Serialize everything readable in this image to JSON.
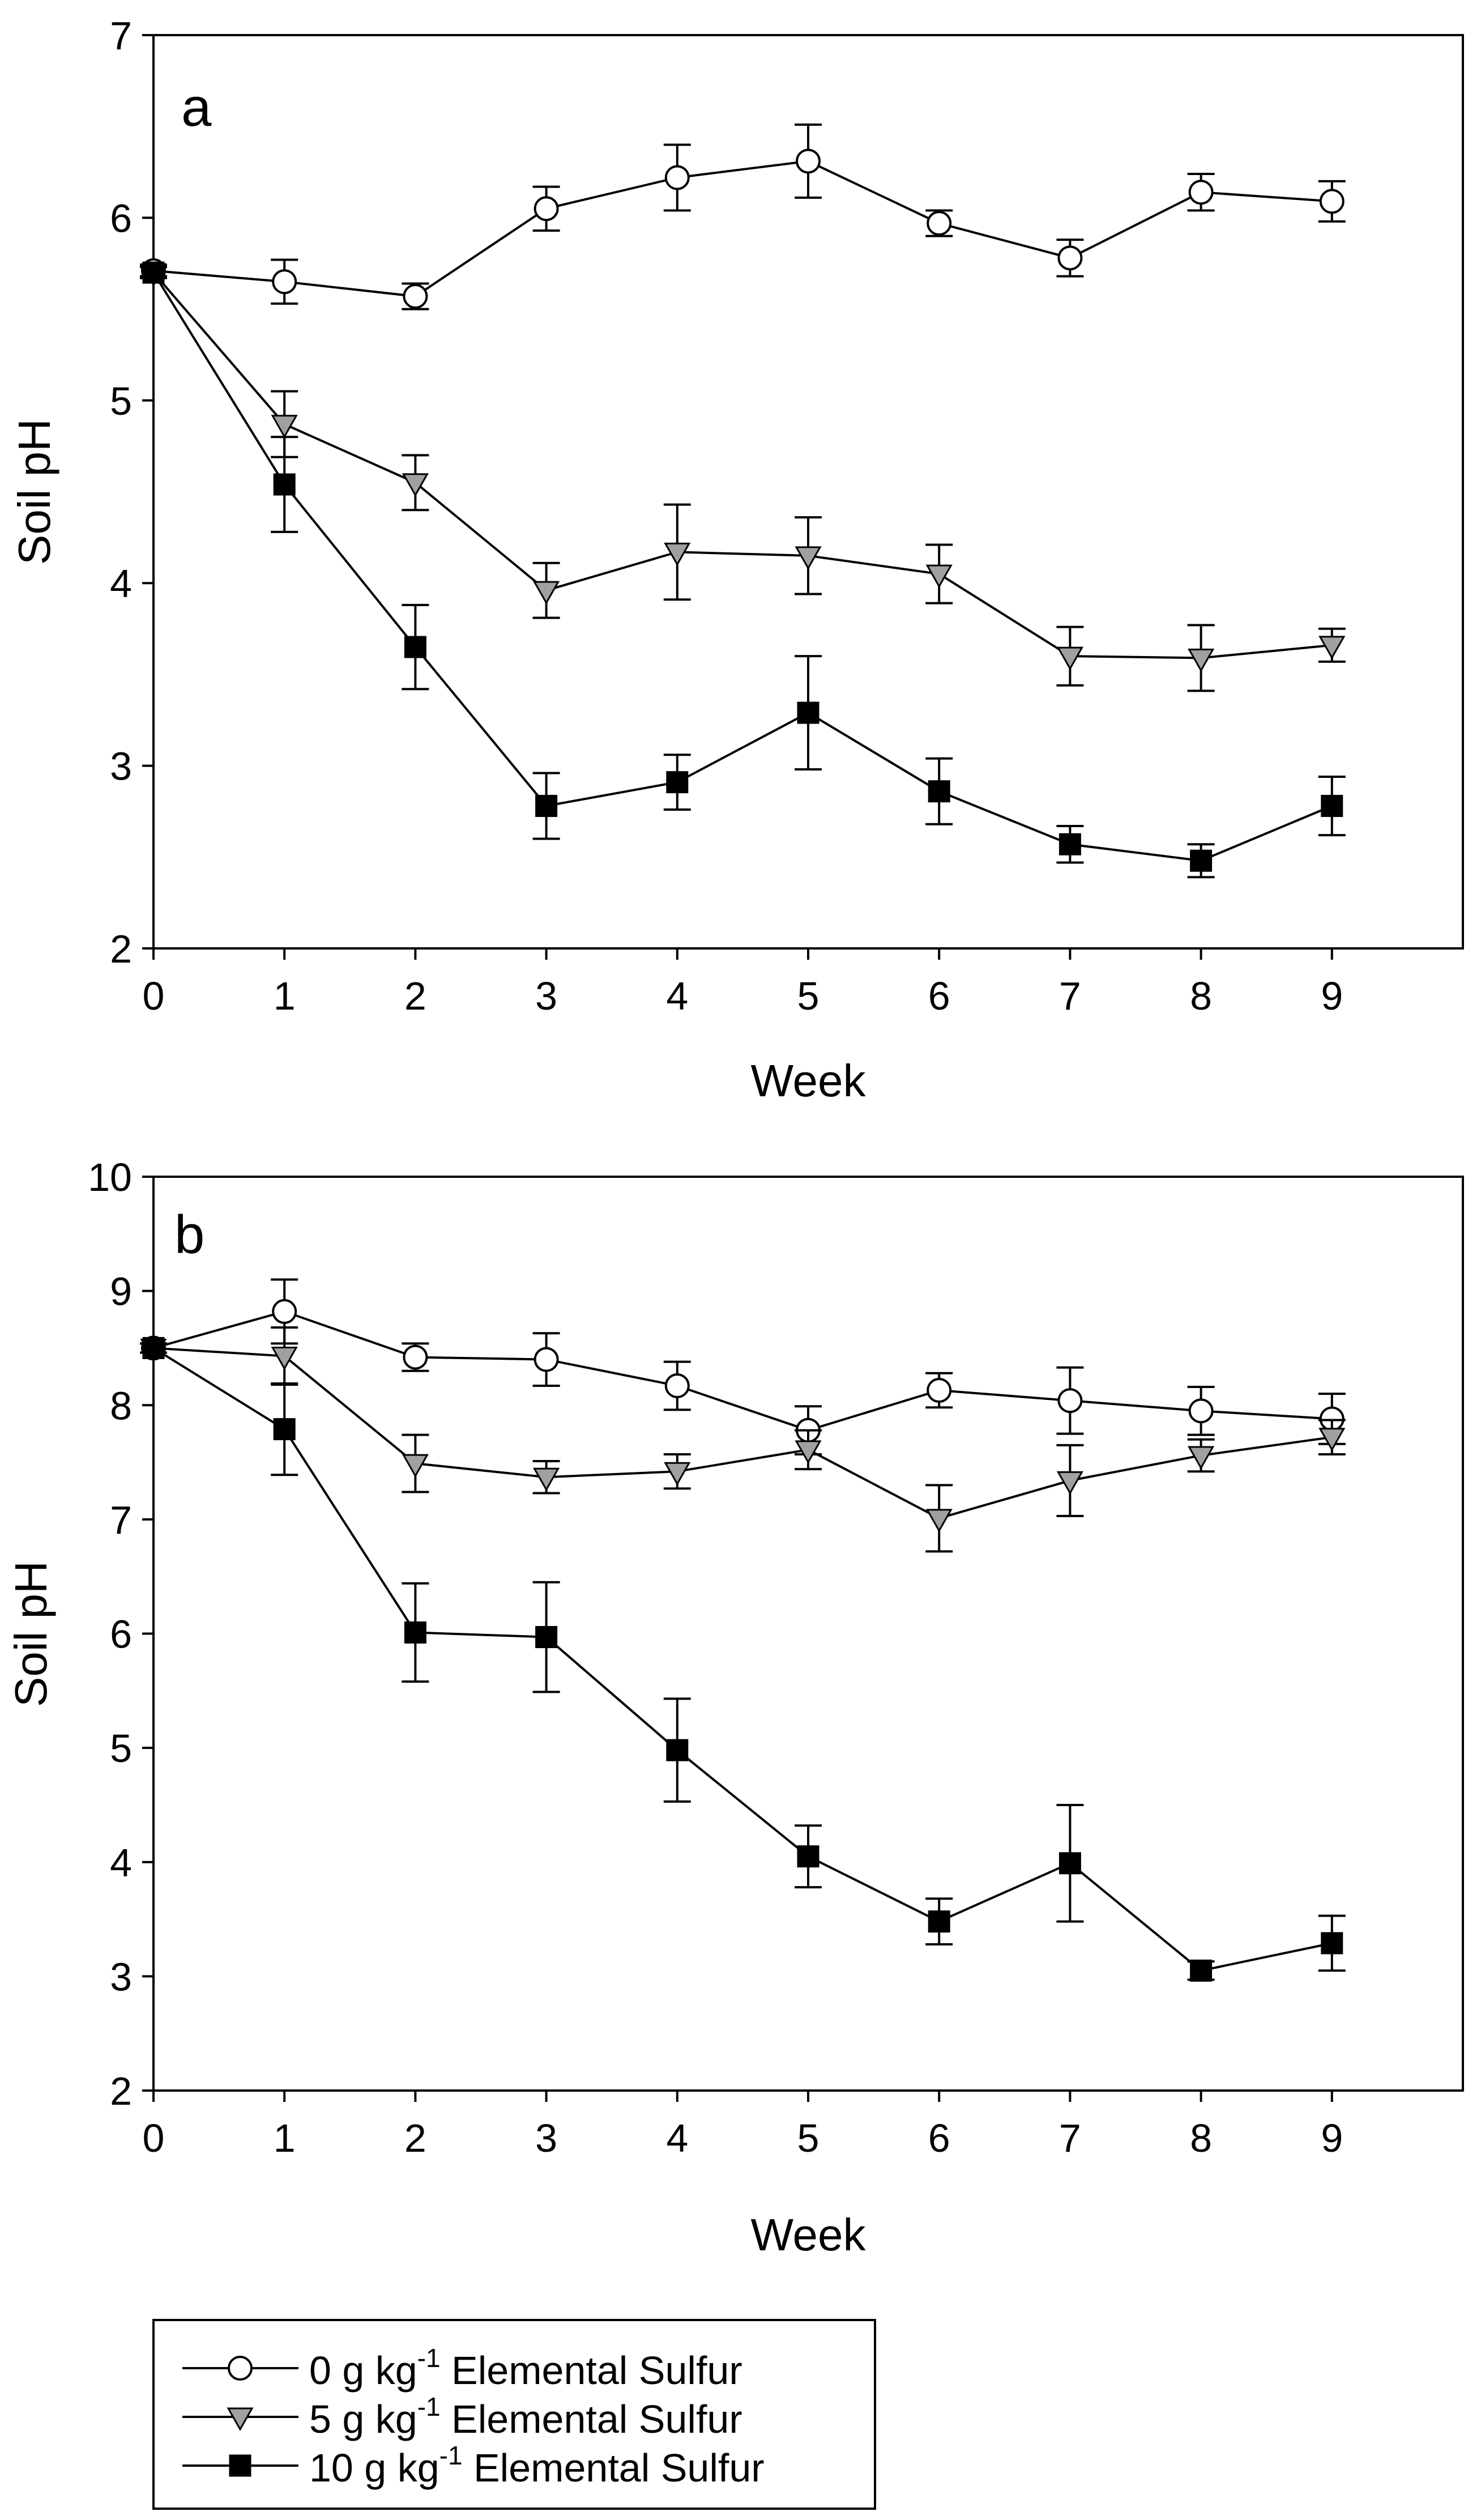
{
  "colors": {
    "axis": "#000000",
    "series_0_fill": "#ffffff",
    "series_5_fill": "#a0a0a0",
    "series_10_fill": "#000000"
  },
  "legend": {
    "entries": [
      {
        "prefix": "0 g kg",
        "superscript": "-1",
        "suffix": " Elemental Sulfur",
        "marker": "circle-open"
      },
      {
        "prefix": "5 g kg",
        "superscript": "-1",
        "suffix": " Elemental Sulfur",
        "marker": "triangle-down-gray"
      },
      {
        "prefix": "10 g kg",
        "superscript": "-1",
        "suffix": " Elemental Sulfur",
        "marker": "square-filled"
      }
    ]
  },
  "chart_data": [
    {
      "type": "line",
      "panel_label": "a",
      "xlabel": "Week",
      "ylabel": "Soil pH",
      "xlim": [
        0,
        10
      ],
      "ylim": [
        2,
        7
      ],
      "x_ticks": [
        0,
        1,
        2,
        3,
        4,
        5,
        6,
        7,
        8,
        9
      ],
      "y_ticks": [
        2,
        3,
        4,
        5,
        6,
        7
      ],
      "grid": false,
      "x": [
        0,
        1,
        2,
        3,
        4,
        5,
        6,
        7,
        8,
        9
      ],
      "series": [
        {
          "marker": "circle-open",
          "values": [
            5.71,
            5.65,
            5.57,
            6.05,
            6.22,
            6.31,
            5.97,
            5.78,
            6.14,
            6.09
          ],
          "errors": [
            0.03,
            0.12,
            0.07,
            0.12,
            0.18,
            0.2,
            0.07,
            0.1,
            0.1,
            0.11
          ]
        },
        {
          "marker": "triangle-down-gray",
          "values": [
            5.7,
            4.87,
            4.55,
            3.96,
            4.17,
            4.15,
            4.05,
            3.6,
            3.59,
            3.66
          ],
          "errors": [
            0.03,
            0.18,
            0.15,
            0.15,
            0.26,
            0.21,
            0.16,
            0.16,
            0.18,
            0.09
          ]
        },
        {
          "marker": "square-filled",
          "values": [
            5.7,
            4.54,
            3.65,
            2.78,
            2.91,
            3.29,
            2.86,
            2.57,
            2.48,
            2.78
          ],
          "errors": [
            0.03,
            0.26,
            0.23,
            0.18,
            0.15,
            0.31,
            0.18,
            0.1,
            0.09,
            0.16
          ]
        }
      ]
    },
    {
      "type": "line",
      "panel_label": "b",
      "xlabel": "Week",
      "ylabel": "Soil pH",
      "xlim": [
        0,
        10
      ],
      "ylim": [
        2,
        10
      ],
      "x_ticks": [
        0,
        1,
        2,
        3,
        4,
        5,
        6,
        7,
        8,
        9
      ],
      "y_ticks": [
        2,
        3,
        4,
        5,
        6,
        7,
        8,
        9,
        10
      ],
      "grid": false,
      "x": [
        0,
        1,
        2,
        3,
        4,
        5,
        6,
        7,
        8,
        9
      ],
      "series": [
        {
          "marker": "circle-open",
          "values": [
            8.5,
            8.82,
            8.42,
            8.4,
            8.17,
            7.78,
            8.13,
            8.04,
            7.95,
            7.88
          ],
          "errors": [
            0.04,
            0.28,
            0.12,
            0.23,
            0.21,
            0.21,
            0.15,
            0.29,
            0.21,
            0.22
          ]
        },
        {
          "marker": "triangle-down-gray",
          "values": [
            8.5,
            8.43,
            7.49,
            7.37,
            7.42,
            7.61,
            7.01,
            7.34,
            7.56,
            7.72
          ],
          "errors": [
            0.04,
            0.25,
            0.25,
            0.14,
            0.15,
            0.17,
            0.29,
            0.31,
            0.14,
            0.15
          ]
        },
        {
          "marker": "square-filled",
          "values": [
            8.5,
            7.79,
            6.01,
            5.97,
            4.98,
            4.05,
            3.48,
            3.99,
            3.05,
            3.29
          ],
          "errors": [
            0.04,
            0.4,
            0.43,
            0.48,
            0.45,
            0.27,
            0.2,
            0.51,
            0.08,
            0.24
          ]
        }
      ]
    }
  ]
}
